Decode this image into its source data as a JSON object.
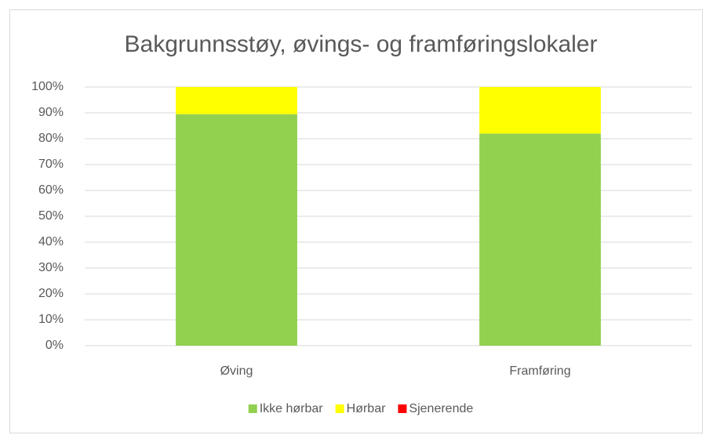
{
  "chart_data": {
    "type": "stacked_bar",
    "title": "Bakgrunnsstøy, øvings- og framføringslokaler",
    "categories": [
      "Øving",
      "Framføring"
    ],
    "series": [
      {
        "name": "Ikke hørbar",
        "color": "#92d050",
        "values": [
          89.5,
          82
        ]
      },
      {
        "name": "Hørbar",
        "color": "#ffff00",
        "values": [
          10.5,
          18
        ]
      },
      {
        "name": "Sjenerende",
        "color": "#ff0000",
        "values": [
          0,
          0
        ]
      }
    ],
    "ylim": [
      0,
      100
    ],
    "yticks": [
      {
        "value": 0,
        "label": "0%"
      },
      {
        "value": 10,
        "label": "10%"
      },
      {
        "value": 20,
        "label": "20%"
      },
      {
        "value": 30,
        "label": "30%"
      },
      {
        "value": 40,
        "label": "40%"
      },
      {
        "value": 50,
        "label": "50%"
      },
      {
        "value": 60,
        "label": "60%"
      },
      {
        "value": 70,
        "label": "70%"
      },
      {
        "value": 80,
        "label": "80%"
      },
      {
        "value": 90,
        "label": "90%"
      },
      {
        "value": 100,
        "label": "100%"
      }
    ],
    "grid": true,
    "legend": "bottom"
  }
}
